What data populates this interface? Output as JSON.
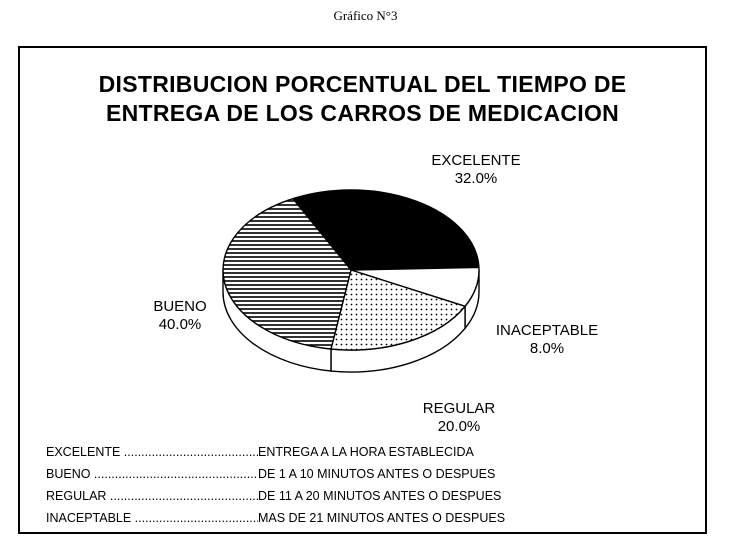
{
  "caption": "Gráfico N°3",
  "chart_data": {
    "type": "pie",
    "title": "DISTRIBUCION PORCENTUAL DEL TIEMPO DE ENTREGA DE LOS CARROS DE MEDICACION",
    "title_lines": [
      "DISTRIBUCION PORCENTUAL DEL TIEMPO DE",
      "ENTREGA DE LOS CARROS DE MEDICACION"
    ],
    "three_d": true,
    "slices": [
      {
        "label": "EXCELENTE",
        "value": 32.0,
        "value_label": "32.0%",
        "fill": "solid-black"
      },
      {
        "label": "INACEPTABLE",
        "value": 8.0,
        "value_label": "8.0%",
        "fill": "white"
      },
      {
        "label": "REGULAR",
        "value": 20.0,
        "value_label": "20.0%",
        "fill": "dots"
      },
      {
        "label": "BUENO",
        "value": 40.0,
        "value_label": "40.0%",
        "fill": "horizontal-lines"
      }
    ]
  },
  "legend": [
    {
      "term": "EXCELENTE ........................................................",
      "desc": "ENTREGA A LA HORA ESTABLECIDA"
    },
    {
      "term": "BUENO ...............................................................",
      "desc": "DE 1 A 10 MINUTOS ANTES O DESPUES"
    },
    {
      "term": "REGULAR ..........................................................",
      "desc": "DE 11 A 20 MINUTOS ANTES O DESPUES"
    },
    {
      "term": "INACEPTABLE ...................................................",
      "desc": "MAS DE 21 MINUTOS ANTES O DESPUES"
    }
  ]
}
